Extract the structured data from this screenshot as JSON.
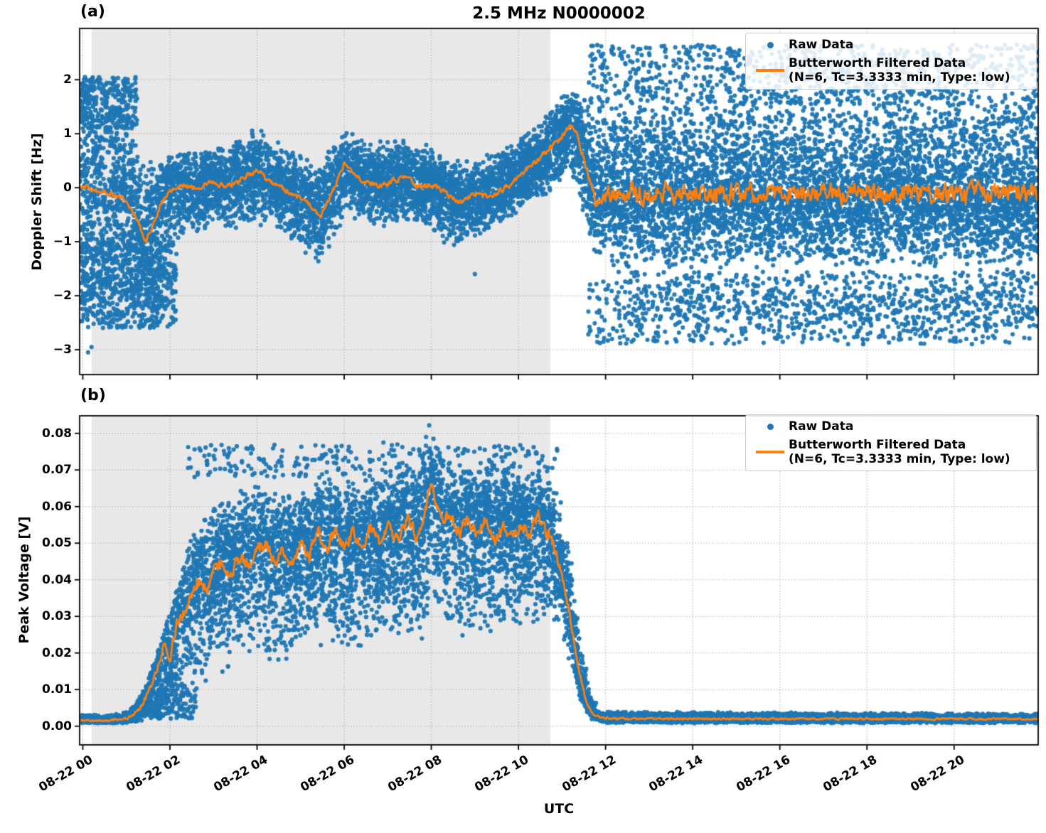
{
  "title": "2.5 MHz N0000002",
  "xlabel": "UTC",
  "legend": {
    "raw_label": "Raw Data",
    "filtered_label_line1": "Butterworth Filtered Data",
    "filtered_label_line2": "(N=6, Tc=3.3333 min, Type: low)"
  },
  "colors": {
    "raw": "#1f77b4",
    "filtered": "#ff7f0e",
    "shade": "#e8e8e8",
    "grid": "#b0b0b0",
    "axis": "#000000"
  },
  "xticks": [
    {
      "t": 0,
      "label": "08-22 00"
    },
    {
      "t": 2,
      "label": "08-22 02"
    },
    {
      "t": 4,
      "label": "08-22 04"
    },
    {
      "t": 6,
      "label": "08-22 06"
    },
    {
      "t": 8,
      "label": "08-22 08"
    },
    {
      "t": 10,
      "label": "08-22 10"
    },
    {
      "t": 12,
      "label": "08-22 12"
    },
    {
      "t": 14,
      "label": "08-22 14"
    },
    {
      "t": 16,
      "label": "08-22 16"
    },
    {
      "t": 18,
      "label": "08-22 18"
    },
    {
      "t": 20,
      "label": "08-22 20"
    }
  ],
  "chart_data": [
    {
      "panel": "(a)",
      "type": "scatter+line",
      "ylabel": "Doppler Shift [Hz]",
      "x_unit": "hours after 2023-08-22 00:00 UTC",
      "xlim": [
        -0.073,
        21.93
      ],
      "ylim": [
        -3.46,
        2.95
      ],
      "yticks": [
        {
          "v": 2,
          "label": "2"
        },
        {
          "v": 1,
          "label": "1"
        },
        {
          "v": 0,
          "label": "0"
        },
        {
          "v": -1,
          "label": "−1"
        },
        {
          "v": -2,
          "label": "−2"
        },
        {
          "v": -3,
          "label": "−3"
        }
      ],
      "shaded_region": [
        0.2,
        10.73
      ],
      "series": {
        "raw": {
          "name": "Raw Data",
          "n": 12000,
          "envelope": [
            [
              -0.08,
              -2.6,
              2.1
            ],
            [
              0.5,
              -2.45,
              1.95
            ],
            [
              1.0,
              -2.3,
              1.5
            ],
            [
              1.5,
              -2.05,
              0.7
            ],
            [
              1.9,
              -1.6,
              0.55
            ],
            [
              2.3,
              -0.9,
              0.75
            ],
            [
              3.0,
              -0.75,
              0.8
            ],
            [
              3.9,
              -0.8,
              1.1
            ],
            [
              4.2,
              -0.7,
              1.0
            ],
            [
              4.8,
              -1.0,
              0.75
            ],
            [
              5.4,
              -1.45,
              0.5
            ],
            [
              5.8,
              -0.9,
              0.9
            ],
            [
              6.1,
              -0.55,
              1.05
            ],
            [
              6.6,
              -0.75,
              0.85
            ],
            [
              7.2,
              -0.7,
              0.95
            ],
            [
              7.7,
              -0.65,
              0.9
            ],
            [
              8.3,
              -1.05,
              0.6
            ],
            [
              8.7,
              -1.15,
              0.55
            ],
            [
              9.2,
              -0.85,
              0.6
            ],
            [
              9.7,
              -0.6,
              0.8
            ],
            [
              10.2,
              -0.4,
              1.05
            ],
            [
              10.7,
              -0.15,
              1.45
            ],
            [
              11.1,
              0.25,
              1.8
            ],
            [
              11.35,
              0.0,
              1.8
            ],
            [
              11.6,
              -0.9,
              1.8
            ],
            [
              11.9,
              -1.5,
              1.85
            ],
            [
              12.5,
              -1.55,
              1.85
            ],
            [
              21.93,
              -1.55,
              1.85
            ]
          ],
          "patches": [
            {
              "t0": -0.05,
              "t1": 1.25,
              "lo": 1.1,
              "hi": 2.05,
              "n": 260
            },
            {
              "t0": -0.05,
              "t1": 2.15,
              "lo": -2.6,
              "hi": -1.05,
              "n": 650
            },
            {
              "t0": 11.6,
              "t1": 21.93,
              "lo": -2.9,
              "hi": -1.55,
              "n": 850
            },
            {
              "t0": 11.6,
              "t1": 21.93,
              "lo": 1.55,
              "hi": 2.65,
              "n": 800
            },
            {
              "t0": 12.2,
              "t1": 21.93,
              "lo": -2.45,
              "hi": -1.9,
              "n": 250
            }
          ],
          "outliers": [
            [
              0.05,
              2.05
            ],
            [
              0.12,
              -3.05
            ],
            [
              0.2,
              -2.95
            ],
            [
              0.35,
              2.0
            ],
            [
              11.9,
              2.62
            ],
            [
              13.6,
              2.6
            ],
            [
              12.6,
              -2.85
            ],
            [
              15.2,
              -2.6
            ],
            [
              17.8,
              -2.65
            ],
            [
              20.5,
              -2.55
            ],
            [
              9.0,
              -1.6
            ],
            [
              4.1,
              1.05
            ]
          ]
        },
        "filtered": {
          "name": "Butterworth Filtered Data (N=6, Tc=3.3333 min, Type: low)",
          "line": [
            [
              -0.08,
              0.05
            ],
            [
              0.3,
              -0.05
            ],
            [
              0.6,
              -0.1
            ],
            [
              0.9,
              -0.2
            ],
            [
              1.2,
              -0.5
            ],
            [
              1.45,
              -1.0
            ],
            [
              1.6,
              -0.7
            ],
            [
              1.8,
              -0.3
            ],
            [
              2.0,
              -0.05
            ],
            [
              2.3,
              0.05
            ],
            [
              2.6,
              0.0
            ],
            [
              2.9,
              0.1
            ],
            [
              3.2,
              0.05
            ],
            [
              3.5,
              0.05
            ],
            [
              3.8,
              0.25
            ],
            [
              4.05,
              0.33
            ],
            [
              4.3,
              0.1
            ],
            [
              4.6,
              -0.02
            ],
            [
              4.9,
              -0.15
            ],
            [
              5.2,
              -0.3
            ],
            [
              5.45,
              -0.55
            ],
            [
              5.7,
              -0.15
            ],
            [
              6.0,
              0.45
            ],
            [
              6.2,
              0.28
            ],
            [
              6.5,
              0.1
            ],
            [
              6.8,
              0.05
            ],
            [
              7.1,
              0.12
            ],
            [
              7.4,
              0.18
            ],
            [
              7.7,
              0.02
            ],
            [
              8.0,
              0.06
            ],
            [
              8.3,
              -0.08
            ],
            [
              8.66,
              -0.28
            ],
            [
              9.0,
              -0.12
            ],
            [
              9.3,
              -0.18
            ],
            [
              9.6,
              -0.05
            ],
            [
              9.9,
              0.1
            ],
            [
              10.2,
              0.35
            ],
            [
              10.5,
              0.55
            ],
            [
              10.8,
              0.8
            ],
            [
              11.0,
              0.95
            ],
            [
              11.2,
              1.18
            ],
            [
              11.35,
              1.0
            ],
            [
              11.5,
              0.55
            ],
            [
              11.65,
              0.1
            ],
            [
              11.8,
              -0.35
            ],
            [
              12.0,
              -0.1
            ],
            [
              21.93,
              -0.12
            ]
          ],
          "jitter": [
            [
              -0.08,
              0.07
            ],
            [
              10.0,
              0.08
            ],
            [
              11.0,
              0.1
            ],
            [
              11.8,
              0.12
            ],
            [
              12.2,
              0.28
            ],
            [
              21.93,
              0.28
            ]
          ]
        }
      }
    },
    {
      "panel": "(b)",
      "type": "scatter+line",
      "ylabel": "Peak Voltage [V]",
      "x_unit": "hours after 2023-08-22 00:00 UTC",
      "xlim": [
        -0.073,
        21.93
      ],
      "ylim": [
        -0.0051,
        0.0848
      ],
      "yticks": [
        {
          "v": 0.08,
          "label": "0.08"
        },
        {
          "v": 0.07,
          "label": "0.07"
        },
        {
          "v": 0.06,
          "label": "0.06"
        },
        {
          "v": 0.05,
          "label": "0.05"
        },
        {
          "v": 0.04,
          "label": "0.04"
        },
        {
          "v": 0.03,
          "label": "0.03"
        },
        {
          "v": 0.02,
          "label": "0.02"
        },
        {
          "v": 0.01,
          "label": "0.01"
        },
        {
          "v": 0.0,
          "label": "0.00"
        }
      ],
      "shaded_region": [
        0.2,
        10.73
      ],
      "series": {
        "raw": {
          "name": "Raw Data",
          "n": 12000,
          "envelope": [
            [
              -0.08,
              0.0008,
              0.0032
            ],
            [
              0.9,
              0.0008,
              0.0035
            ],
            [
              1.2,
              0.001,
              0.006
            ],
            [
              1.5,
              0.0015,
              0.013
            ],
            [
              1.8,
              0.002,
              0.024
            ],
            [
              2.1,
              0.004,
              0.036
            ],
            [
              2.4,
              0.006,
              0.05
            ],
            [
              2.7,
              0.009,
              0.057
            ],
            [
              3.0,
              0.011,
              0.061
            ],
            [
              3.4,
              0.014,
              0.065
            ],
            [
              3.9,
              0.017,
              0.068
            ],
            [
              4.4,
              0.015,
              0.064
            ],
            [
              4.9,
              0.019,
              0.066
            ],
            [
              5.4,
              0.021,
              0.07
            ],
            [
              5.9,
              0.019,
              0.068
            ],
            [
              6.4,
              0.021,
              0.07
            ],
            [
              6.9,
              0.024,
              0.071
            ],
            [
              7.4,
              0.021,
              0.073
            ],
            [
              7.9,
              0.024,
              0.078
            ],
            [
              8.1,
              0.025,
              0.075
            ],
            [
              8.5,
              0.023,
              0.072
            ],
            [
              9.0,
              0.025,
              0.07
            ],
            [
              9.5,
              0.023,
              0.072
            ],
            [
              10.0,
              0.025,
              0.07
            ],
            [
              10.5,
              0.027,
              0.071
            ],
            [
              10.9,
              0.028,
              0.066
            ],
            [
              11.15,
              0.018,
              0.052
            ],
            [
              11.4,
              0.007,
              0.028
            ],
            [
              11.65,
              0.002,
              0.009
            ],
            [
              11.9,
              0.0008,
              0.004
            ],
            [
              21.93,
              0.0008,
              0.0035
            ]
          ],
          "patches": [
            {
              "t0": 2.4,
              "t1": 11.0,
              "lo": 0.068,
              "hi": 0.077,
              "n": 260
            },
            {
              "t0": 1.5,
              "t1": 2.6,
              "lo": 0.002,
              "hi": 0.01,
              "n": 150
            }
          ],
          "outliers": [
            [
              7.95,
              0.0822
            ],
            [
              7.88,
              0.079
            ],
            [
              8.05,
              0.0785
            ],
            [
              6.9,
              0.0775
            ],
            [
              5.15,
              0.073
            ],
            [
              3.4,
              0.071
            ],
            [
              9.6,
              0.0755
            ],
            [
              10.4,
              0.0745
            ]
          ]
        },
        "filtered": {
          "name": "Butterworth Filtered Data (N=6, Tc=3.3333 min, Type: low)",
          "line": [
            [
              -0.08,
              0.0016
            ],
            [
              0.6,
              0.0015
            ],
            [
              1.0,
              0.002
            ],
            [
              1.3,
              0.0045
            ],
            [
              1.5,
              0.009
            ],
            [
              1.7,
              0.015
            ],
            [
              1.85,
              0.022
            ],
            [
              2.0,
              0.019
            ],
            [
              2.15,
              0.028
            ],
            [
              2.35,
              0.032
            ],
            [
              2.55,
              0.037
            ],
            [
              2.7,
              0.04
            ],
            [
              2.85,
              0.037
            ],
            [
              3.0,
              0.042
            ],
            [
              3.2,
              0.045
            ],
            [
              3.4,
              0.041
            ],
            [
              3.6,
              0.046
            ],
            [
              3.8,
              0.044
            ],
            [
              4.0,
              0.048
            ],
            [
              4.2,
              0.05
            ],
            [
              4.4,
              0.044
            ],
            [
              4.6,
              0.048
            ],
            [
              4.8,
              0.045
            ],
            [
              5.0,
              0.05
            ],
            [
              5.2,
              0.046
            ],
            [
              5.4,
              0.053
            ],
            [
              5.6,
              0.048
            ],
            [
              5.8,
              0.054
            ],
            [
              6.0,
              0.049
            ],
            [
              6.2,
              0.053
            ],
            [
              6.4,
              0.048
            ],
            [
              6.6,
              0.054
            ],
            [
              6.8,
              0.05
            ],
            [
              7.0,
              0.055
            ],
            [
              7.2,
              0.051
            ],
            [
              7.45,
              0.057
            ],
            [
              7.65,
              0.052
            ],
            [
              7.85,
              0.058
            ],
            [
              8.0,
              0.068
            ],
            [
              8.1,
              0.062
            ],
            [
              8.25,
              0.055
            ],
            [
              8.45,
              0.058
            ],
            [
              8.65,
              0.052
            ],
            [
              8.85,
              0.057
            ],
            [
              9.05,
              0.052
            ],
            [
              9.25,
              0.057
            ],
            [
              9.45,
              0.05
            ],
            [
              9.65,
              0.055
            ],
            [
              9.85,
              0.051
            ],
            [
              10.05,
              0.056
            ],
            [
              10.25,
              0.052
            ],
            [
              10.45,
              0.058
            ],
            [
              10.65,
              0.053
            ],
            [
              10.8,
              0.05
            ],
            [
              10.95,
              0.043
            ],
            [
              11.1,
              0.036
            ],
            [
              11.25,
              0.025
            ],
            [
              11.4,
              0.015
            ],
            [
              11.55,
              0.007
            ],
            [
              11.7,
              0.0035
            ],
            [
              11.9,
              0.0022
            ],
            [
              12.5,
              0.002
            ],
            [
              21.93,
              0.002
            ]
          ],
          "jitter": [
            [
              -0.08,
              0.0003
            ],
            [
              1.0,
              0.0005
            ],
            [
              1.8,
              0.0015
            ],
            [
              2.3,
              0.0028
            ],
            [
              10.8,
              0.0028
            ],
            [
              11.3,
              0.0012
            ],
            [
              11.7,
              0.0004
            ],
            [
              21.93,
              0.00035
            ]
          ]
        }
      }
    }
  ]
}
